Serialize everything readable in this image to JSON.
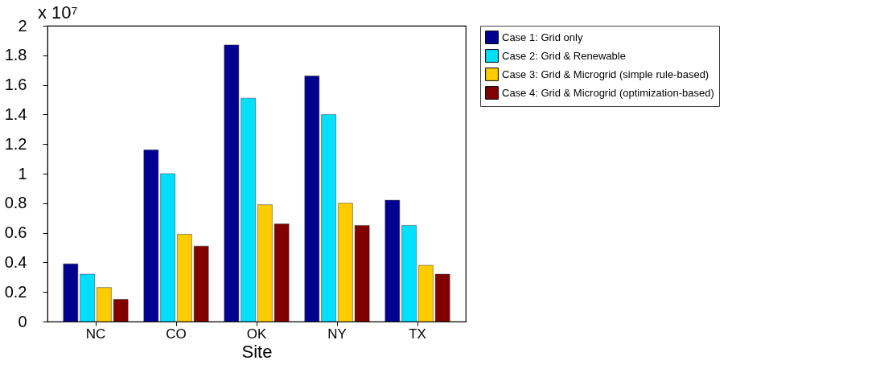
{
  "chart_data": {
    "type": "bar",
    "xlabel": "Site",
    "categories": [
      "NC",
      "CO",
      "OK",
      "NY",
      "TX"
    ],
    "series": [
      {
        "name": "Case 1: Grid only",
        "color": "#000090",
        "values": [
          0.39,
          1.16,
          1.87,
          1.66,
          0.82
        ]
      },
      {
        "name": "Case 2: Grid & Renewable",
        "color": "#00dfff",
        "values": [
          0.32,
          1.0,
          1.51,
          1.4,
          0.65
        ]
      },
      {
        "name": "Case 3: Grid & Microgrid (simple rule-based)",
        "color": "#ffcc00",
        "values": [
          0.23,
          0.59,
          0.79,
          0.8,
          0.38
        ]
      },
      {
        "name": "Case 4: Grid & Microgrid (optimization-based)",
        "color": "#800000",
        "values": [
          0.15,
          0.51,
          0.66,
          0.65,
          0.32
        ]
      }
    ],
    "ylim": [
      0,
      2
    ],
    "yticks": [
      0,
      0.2,
      0.4,
      0.6,
      0.8,
      1,
      1.2,
      1.4,
      1.6,
      1.8,
      2
    ],
    "annotations": [
      "x 10⁷"
    ],
    "grid": false,
    "legend": "top right"
  }
}
